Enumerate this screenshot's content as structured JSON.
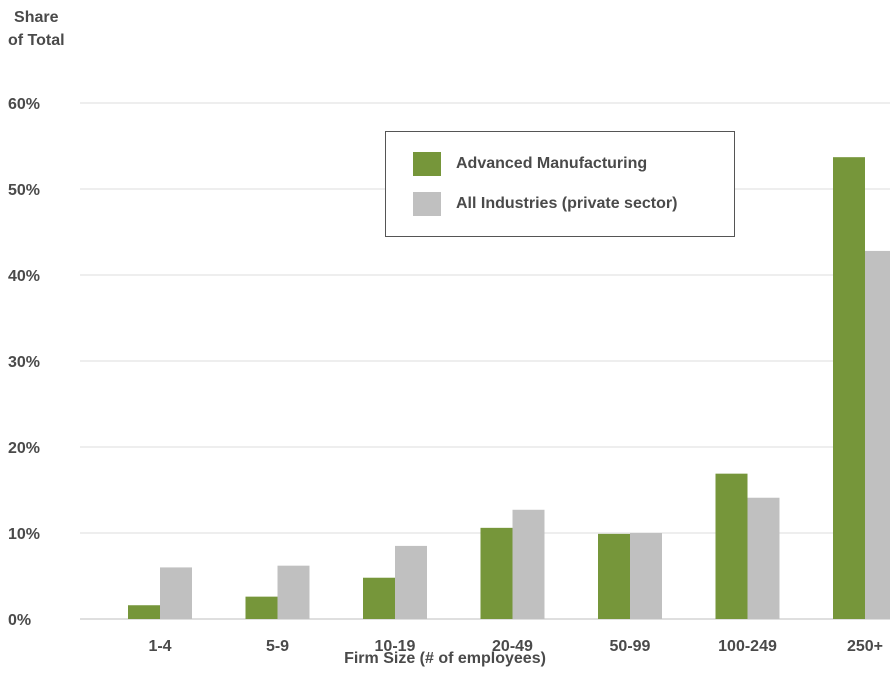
{
  "chart_data": {
    "type": "bar",
    "title": "",
    "ylabel_line1": "Share",
    "ylabel_line2": "of Total",
    "xlabel": "Firm Size (# of employees)",
    "categories": [
      "1-4",
      "5-9",
      "10-19",
      "20-49",
      "50-99",
      "100-249",
      "250+"
    ],
    "yticks": [
      "0%",
      "10%",
      "20%",
      "30%",
      "40%",
      "50%",
      "60%"
    ],
    "ylim": [
      0,
      60
    ],
    "grid": true,
    "legend_position": "top-center",
    "series": [
      {
        "name": "Advanced Manufacturing",
        "color": "#76963a",
        "values": [
          1.6,
          2.6,
          4.8,
          10.6,
          9.9,
          16.9,
          53.7
        ]
      },
      {
        "name": "All Industries (private sector)",
        "color": "#c0c0c0",
        "values": [
          6.0,
          6.2,
          8.5,
          12.7,
          10.0,
          14.1,
          42.8
        ]
      }
    ]
  }
}
